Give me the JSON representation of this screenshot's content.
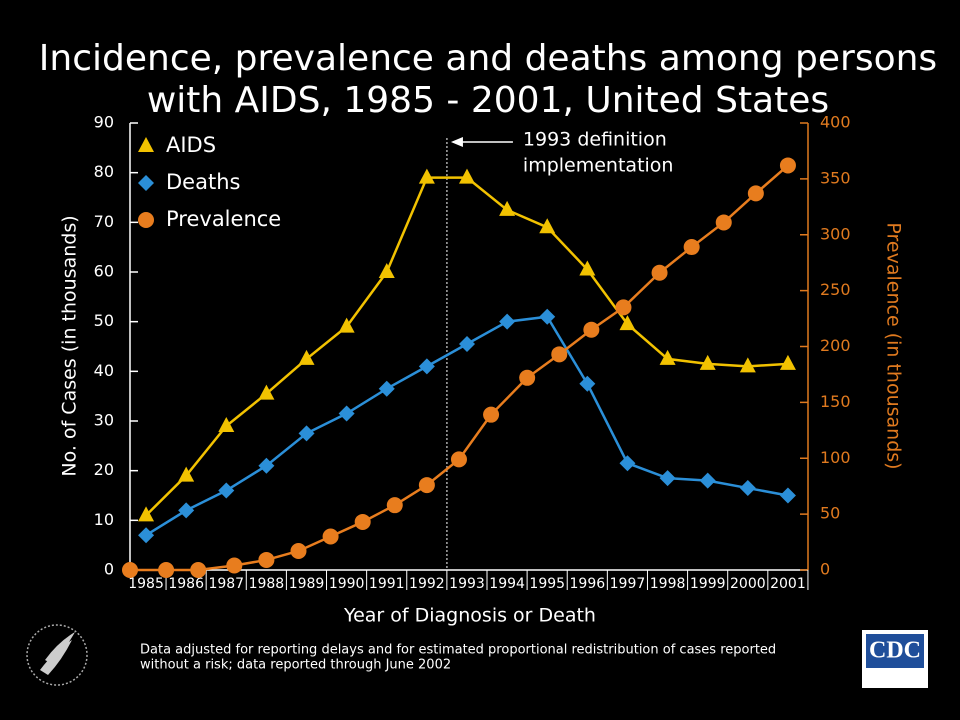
{
  "chart_data": {
    "type": "line",
    "title": [
      "Incidence, prevalence and deaths among persons",
      "with AIDS, 1985 - 2001, United States"
    ],
    "x_label": "Year of Diagnosis or Death",
    "y_label": "No. of Cases (in thousands)",
    "y2_label": "Prevalence (in thousands)",
    "xlim": [
      1984.6,
      2001.5
    ],
    "xticks": [
      1985,
      1986,
      1987,
      1988,
      1989,
      1990,
      1991,
      1992,
      1993,
      1994,
      1995,
      1996,
      1997,
      1998,
      1999,
      2000,
      2001
    ],
    "ylim": [
      0,
      90
    ],
    "yticks": [
      0,
      10,
      20,
      30,
      40,
      50,
      60,
      70,
      80,
      90
    ],
    "y2lim": [
      0,
      400
    ],
    "y2ticks": [
      0,
      50,
      100,
      150,
      200,
      250,
      300,
      350,
      400
    ],
    "y2_color": "#e07a1f",
    "legend": "top-left",
    "annotation": {
      "text": [
        "1993 definition",
        "implementation"
      ],
      "x": 1992.5
    },
    "series": [
      {
        "name": "AIDS",
        "color": "#f2c200",
        "marker": "triangle",
        "axis": "y",
        "x": [
          1985,
          1986,
          1987,
          1988,
          1989,
          1990,
          1991,
          1992,
          1993,
          1994,
          1995,
          1996,
          1997,
          1998,
          1999,
          2000,
          2001
        ],
        "values": [
          11,
          19,
          29,
          35.5,
          42.5,
          49,
          60,
          79,
          79,
          72.5,
          69,
          60.5,
          49.5,
          42.5,
          41.5,
          41,
          41.5
        ]
      },
      {
        "name": "Deaths",
        "color": "#2b8fd8",
        "marker": "diamond",
        "axis": "y",
        "x": [
          1985,
          1986,
          1987,
          1988,
          1989,
          1990,
          1991,
          1992,
          1993,
          1994,
          1995,
          1996,
          1997,
          1998,
          1999,
          2000,
          2001
        ],
        "values": [
          7,
          12,
          16,
          21,
          27.5,
          31.5,
          36.5,
          41,
          45.5,
          50,
          51,
          37.5,
          21.5,
          18.5,
          18,
          16.5,
          15
        ]
      },
      {
        "name": "Prevalence",
        "color": "#e87d1e",
        "marker": "circle",
        "axis": "y2",
        "x": [
          1984.6,
          1985.5,
          1986.3,
          1987.2,
          1988.0,
          1988.8,
          1989.6,
          1990.4,
          1991.2,
          1992.0,
          1992.8,
          1993.6,
          1994.5,
          1995.3,
          1996.1,
          1996.9,
          1997.8,
          1998.6,
          1999.4,
          2000.2,
          2001.0
        ],
        "values": [
          0,
          0,
          0,
          4,
          9,
          17,
          30,
          43,
          58,
          76,
          99,
          139,
          172,
          193,
          215,
          235,
          266,
          289,
          311,
          337,
          362
        ]
      }
    ],
    "footnote": [
      "Data adjusted for reporting delays and for estimated proportional redistribution of cases reported",
      "without a risk; data reported through June 2002"
    ],
    "logo": "CDC"
  }
}
